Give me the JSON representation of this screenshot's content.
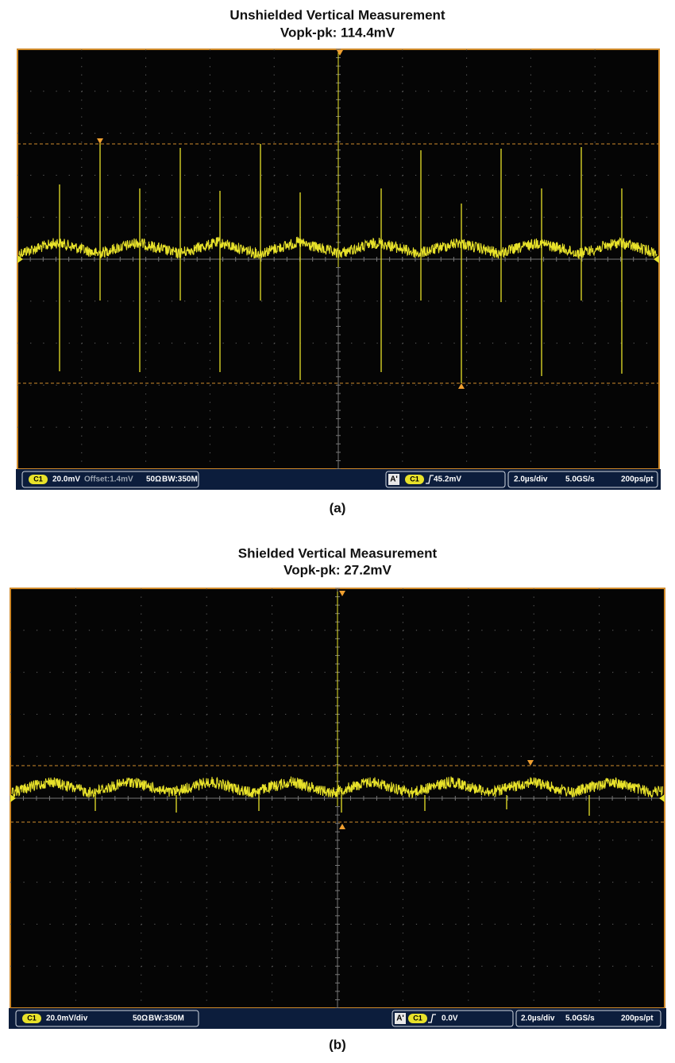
{
  "panels": [
    {
      "title": "Unshielded Vertical Measurement",
      "subtitle": "Vopk-pk: 114.4mV",
      "status": {
        "channel": "C1",
        "scale": "20.0mV",
        "offset": "Offset:1.4mV",
        "impedance": "50Ω",
        "bandwidth": "BW:350M",
        "trigger_mode": "A'",
        "trigger_source": "C1",
        "trigger_level": "45.2mV",
        "timebase": "2.0µs/div",
        "sample_rate": "5.0GS/s",
        "resolution": "200ps/pt"
      },
      "caption": "(a)"
    },
    {
      "title": "Shielded Vertical Measurement",
      "subtitle": "Vopk-pk: 27.2mV",
      "status": {
        "channel": "C1",
        "scale": "20.0mV/div",
        "impedance": "50Ω",
        "bandwidth": "BW:350M",
        "trigger_mode": "A'",
        "trigger_source": "C1",
        "trigger_level": "0.0V",
        "timebase": "2.0µs/div",
        "sample_rate": "5.0GS/s",
        "resolution": "200ps/pt"
      },
      "caption": "(b)"
    }
  ]
}
